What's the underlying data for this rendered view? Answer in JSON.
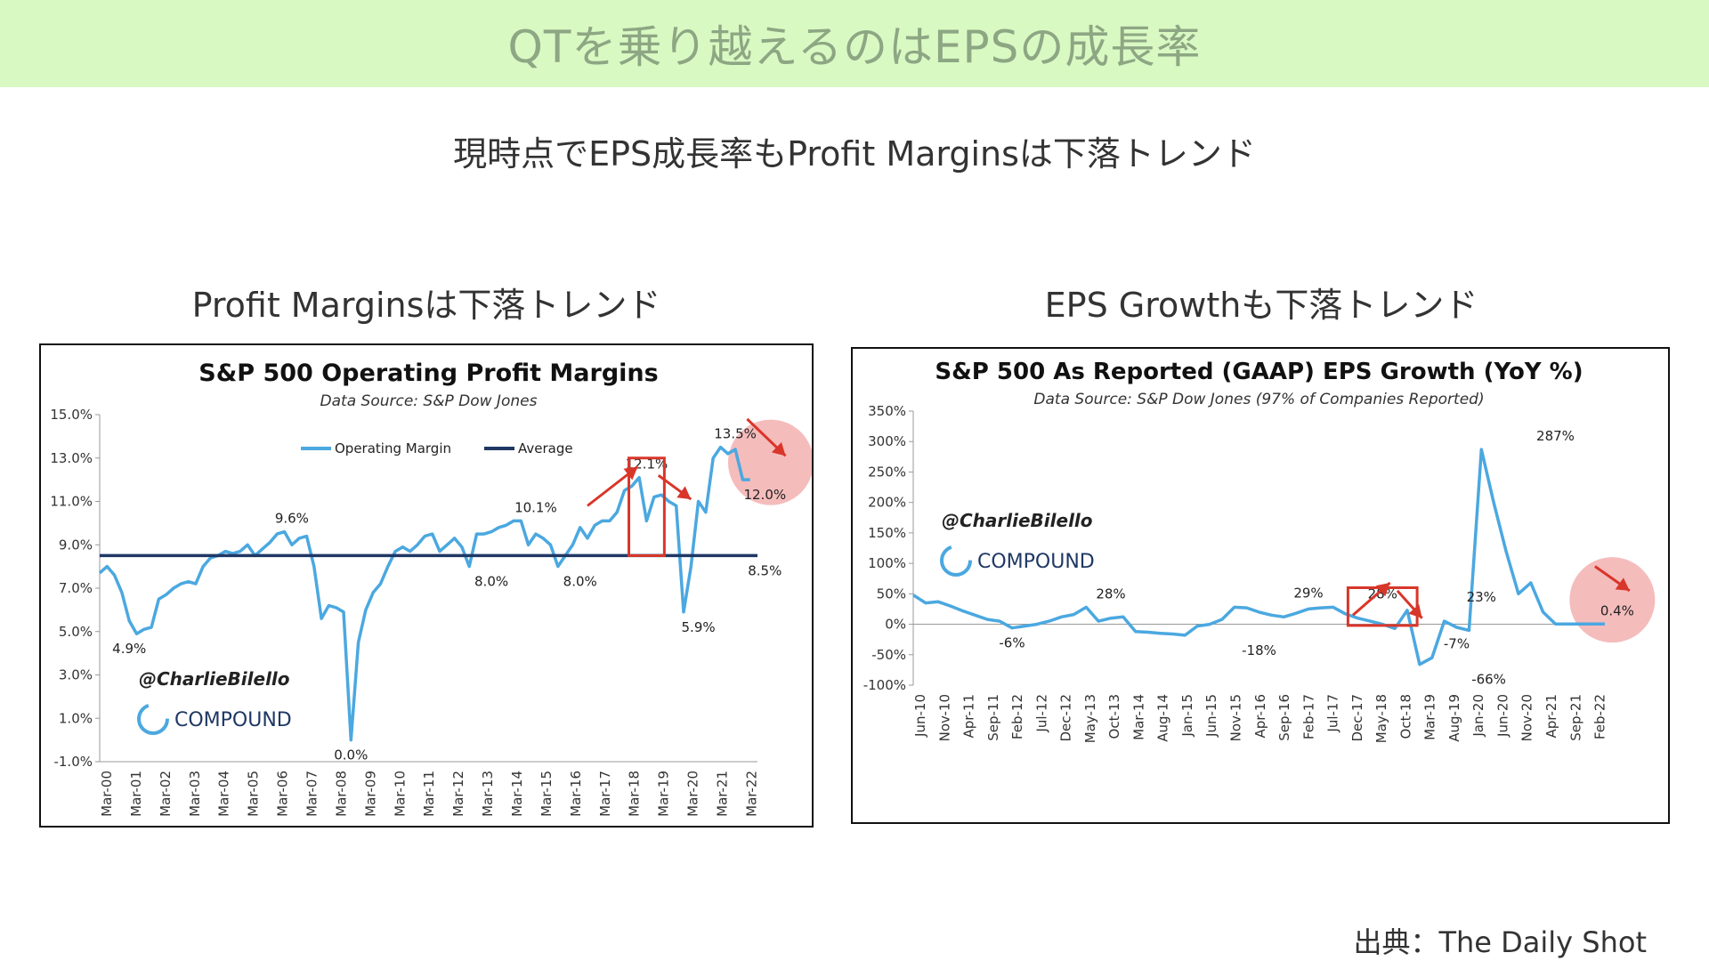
{
  "banner": {
    "title": "QTを乗り越えるのはEPSの成長率"
  },
  "subtitle": "現時点でEPS成長率もProfit Marginsは下落トレンド",
  "left_heading": "Profit Marginsは下落トレンド",
  "right_heading": "EPS Growthも下落トレンド",
  "source": "出典：The Daily Shot",
  "colors": {
    "banner_bg": "#d9f9c3",
    "series": "#4ba8e0",
    "average": "#1f3864",
    "highlight": "#d9362a",
    "circle": "#f2a5a5"
  },
  "chart_data": [
    {
      "type": "line",
      "title": "S&P 500 Operating Profit Margins",
      "subtitle": "Data Source: S&P Dow Jones",
      "watermark": {
        "handle": "@CharlieBilello",
        "brand": "COMPOUND"
      },
      "x_tick_labels": [
        "Mar-00",
        "Mar-01",
        "Mar-02",
        "Mar-03",
        "Mar-04",
        "Mar-05",
        "Mar-06",
        "Mar-07",
        "Mar-08",
        "Mar-09",
        "Mar-10",
        "Mar-11",
        "Mar-12",
        "Mar-13",
        "Mar-14",
        "Mar-15",
        "Mar-16",
        "Mar-17",
        "Mar-18",
        "Mar-19",
        "Mar-20",
        "Mar-21",
        "Mar-22"
      ],
      "y_tick_labels": [
        "15.0%",
        "13.0%",
        "11.0%",
        "9.0%",
        "7.0%",
        "5.0%",
        "3.0%",
        "1.0%",
        "-1.0%"
      ],
      "ylim": [
        -1,
        15
      ],
      "xlim": [
        2000.0,
        2022.25
      ],
      "legend": {
        "position": "top",
        "items": [
          "Operating Margin",
          "Average"
        ]
      },
      "series": [
        {
          "name": "Operating Margin",
          "x": [
            2000.0,
            2000.25,
            2000.5,
            2000.75,
            2001.0,
            2001.25,
            2001.5,
            2001.75,
            2002.0,
            2002.25,
            2002.5,
            2002.75,
            2003.0,
            2003.25,
            2003.5,
            2003.75,
            2004.0,
            2004.25,
            2004.5,
            2004.75,
            2005.0,
            2005.25,
            2005.5,
            2005.75,
            2006.0,
            2006.25,
            2006.5,
            2006.75,
            2007.0,
            2007.25,
            2007.5,
            2007.75,
            2008.0,
            2008.25,
            2008.5,
            2008.75,
            2009.0,
            2009.25,
            2009.5,
            2009.75,
            2010.0,
            2010.25,
            2010.5,
            2010.75,
            2011.0,
            2011.25,
            2011.5,
            2011.75,
            2012.0,
            2012.25,
            2012.5,
            2012.75,
            2013.0,
            2013.25,
            2013.5,
            2013.75,
            2014.0,
            2014.25,
            2014.5,
            2014.75,
            2015.0,
            2015.25,
            2015.5,
            2015.75,
            2016.0,
            2016.25,
            2016.5,
            2016.75,
            2017.0,
            2017.25,
            2017.5,
            2017.75,
            2018.0,
            2018.25,
            2018.5,
            2018.75,
            2019.0,
            2019.25,
            2019.5,
            2019.75,
            2020.0,
            2020.25,
            2020.5,
            2020.75,
            2021.0,
            2021.25,
            2021.5,
            2021.75,
            2022.0
          ],
          "y": [
            7.7,
            8.0,
            7.6,
            6.8,
            5.5,
            4.9,
            5.1,
            5.2,
            6.5,
            6.7,
            7.0,
            7.2,
            7.3,
            7.2,
            8.0,
            8.4,
            8.5,
            8.7,
            8.6,
            8.7,
            9.0,
            8.5,
            8.8,
            9.1,
            9.5,
            9.6,
            9.0,
            9.3,
            9.4,
            8.0,
            5.6,
            6.2,
            6.1,
            5.9,
            0.0,
            4.5,
            6.0,
            6.8,
            7.2,
            8.0,
            8.7,
            8.9,
            8.7,
            9.0,
            9.4,
            9.5,
            8.7,
            9.0,
            9.3,
            8.9,
            8.0,
            9.5,
            9.5,
            9.6,
            9.8,
            9.9,
            10.1,
            10.1,
            9.0,
            9.5,
            9.3,
            9.0,
            8.0,
            8.5,
            9.0,
            9.8,
            9.3,
            9.9,
            10.1,
            10.1,
            10.5,
            11.5,
            11.7,
            12.1,
            10.1,
            11.2,
            11.3,
            11.0,
            10.8,
            5.9,
            8.0,
            11.0,
            10.5,
            13.0,
            13.5,
            13.2,
            13.4,
            12.0,
            12.0
          ]
        },
        {
          "name": "Average",
          "x": [
            2000.0,
            2022.25
          ],
          "y": [
            8.5,
            8.5
          ]
        }
      ],
      "data_labels": [
        {
          "x": 2001.0,
          "y": 4.9,
          "text": "4.9%"
        },
        {
          "x": 2006.5,
          "y": 9.6,
          "text": "9.6%"
        },
        {
          "x": 2008.5,
          "y": 0.0,
          "text": "0.0%"
        },
        {
          "x": 2013.25,
          "y": 8.0,
          "text": "8.0%"
        },
        {
          "x": 2014.75,
          "y": 10.1,
          "text": "10.1%"
        },
        {
          "x": 2016.25,
          "y": 8.0,
          "text": "8.0%"
        },
        {
          "x": 2018.5,
          "y": 12.1,
          "text": "12.1%"
        },
        {
          "x": 2020.25,
          "y": 5.9,
          "text": "5.9%"
        },
        {
          "x": 2021.5,
          "y": 13.5,
          "text": "13.5%"
        },
        {
          "x": 2022.5,
          "y": 12.0,
          "text": "12.0%"
        },
        {
          "x": 2022.5,
          "y": 8.5,
          "text": "8.5%"
        }
      ],
      "highlights": [
        {
          "kind": "box",
          "x0": 2017.9,
          "x1": 2019.1,
          "y0": 8.5,
          "y1": 13.0
        },
        {
          "kind": "arrow-up",
          "x0": 2016.5,
          "y0": 10.8,
          "x1": 2018.2,
          "y1": 12.6
        },
        {
          "kind": "arrow-down",
          "x0": 2018.9,
          "y0": 12.2,
          "x1": 2020.0,
          "y1": 11.1
        },
        {
          "kind": "circle",
          "cx": 2022.7,
          "cy": 12.8
        },
        {
          "kind": "arrow-down",
          "x0": 2021.9,
          "y0": 14.8,
          "x1": 2023.2,
          "y1": 13.1
        }
      ]
    },
    {
      "type": "line",
      "title": "S&P 500 As Reported (GAAP) EPS Growth (YoY %)",
      "subtitle": "Data Source: S&P Dow Jones (97% of Companies Reported)",
      "watermark": {
        "handle": "@CharlieBilello",
        "brand": "COMPOUND"
      },
      "x_tick_labels": [
        "Jun-10",
        "Nov-10",
        "Apr-11",
        "Sep-11",
        "Feb-12",
        "Jul-12",
        "Dec-12",
        "May-13",
        "Oct-13",
        "Mar-14",
        "Aug-14",
        "Jan-15",
        "Jun-15",
        "Nov-15",
        "Apr-16",
        "Sep-16",
        "Feb-17",
        "Jul-17",
        "Dec-17",
        "May-18",
        "Oct-18",
        "Mar-19",
        "Aug-19",
        "Jan-20",
        "Jun-20",
        "Nov-20",
        "Apr-21",
        "Sep-21",
        "Feb-22"
      ],
      "y_tick_labels": [
        "350%",
        "300%",
        "250%",
        "200%",
        "150%",
        "100%",
        "50%",
        "0%",
        "-50%",
        "-100%"
      ],
      "ylim": [
        -100,
        350
      ],
      "xlim": [
        0,
        28
      ],
      "series": [
        {
          "name": "EPS Growth",
          "x": [
            0,
            0.5,
            1,
            1.5,
            2,
            2.5,
            3,
            3.5,
            4,
            4.5,
            5,
            5.5,
            6,
            6.5,
            7,
            7.5,
            8,
            8.5,
            9,
            9.5,
            10,
            10.5,
            11,
            11.5,
            12,
            12.5,
            13,
            13.5,
            14,
            14.5,
            15,
            15.5,
            16,
            16.5,
            17,
            17.5,
            18,
            18.5,
            19,
            19.5,
            20,
            20.5,
            21,
            21.5,
            22,
            22.5,
            23,
            23.5,
            24,
            24.5,
            25,
            25.5,
            26,
            26.5,
            27,
            27.5,
            28
          ],
          "y": [
            48,
            35,
            37,
            30,
            22,
            15,
            8,
            5,
            -6,
            -3,
            0,
            5,
            12,
            16,
            28,
            5,
            10,
            12,
            -12,
            -13,
            -15,
            -16,
            -18,
            -3,
            0,
            8,
            28,
            27,
            20,
            15,
            12,
            18,
            25,
            27,
            28,
            17,
            10,
            5,
            0,
            -7,
            23,
            -66,
            -55,
            5,
            -5,
            -10,
            287,
            200,
            120,
            50,
            68,
            20,
            0.4,
            0.4,
            0.4,
            0.4,
            0.4
          ]
        }
      ],
      "data_labels": [
        {
          "x": 4,
          "y": -6,
          "text": "-6%"
        },
        {
          "x": 8,
          "y": 28,
          "text": "28%"
        },
        {
          "x": 14,
          "y": -18,
          "text": "-18%"
        },
        {
          "x": 16,
          "y": 29,
          "text": "29%"
        },
        {
          "x": 19,
          "y": 28,
          "text": "28%"
        },
        {
          "x": 22,
          "y": -7,
          "text": "-7%"
        },
        {
          "x": 23,
          "y": 23,
          "text": "23%"
        },
        {
          "x": 23.3,
          "y": -66,
          "text": "-66%"
        },
        {
          "x": 26,
          "y": 287,
          "text": "287%"
        },
        {
          "x": 28.5,
          "y": 0.4,
          "text": "0.4%"
        }
      ],
      "highlights": [
        {
          "kind": "box",
          "x0": 17.6,
          "x1": 20.4,
          "y0": -2,
          "y1": 60
        },
        {
          "kind": "arrow-up",
          "x0": 17.8,
          "y0": 15,
          "x1": 19.3,
          "y1": 68
        },
        {
          "kind": "arrow-down",
          "x0": 19.6,
          "y0": 55,
          "x1": 20.6,
          "y1": 10
        },
        {
          "kind": "circle",
          "cx": 28.3,
          "cy": 40
        },
        {
          "kind": "arrow-down",
          "x0": 27.6,
          "y0": 95,
          "x1": 29.0,
          "y1": 55
        }
      ]
    }
  ]
}
